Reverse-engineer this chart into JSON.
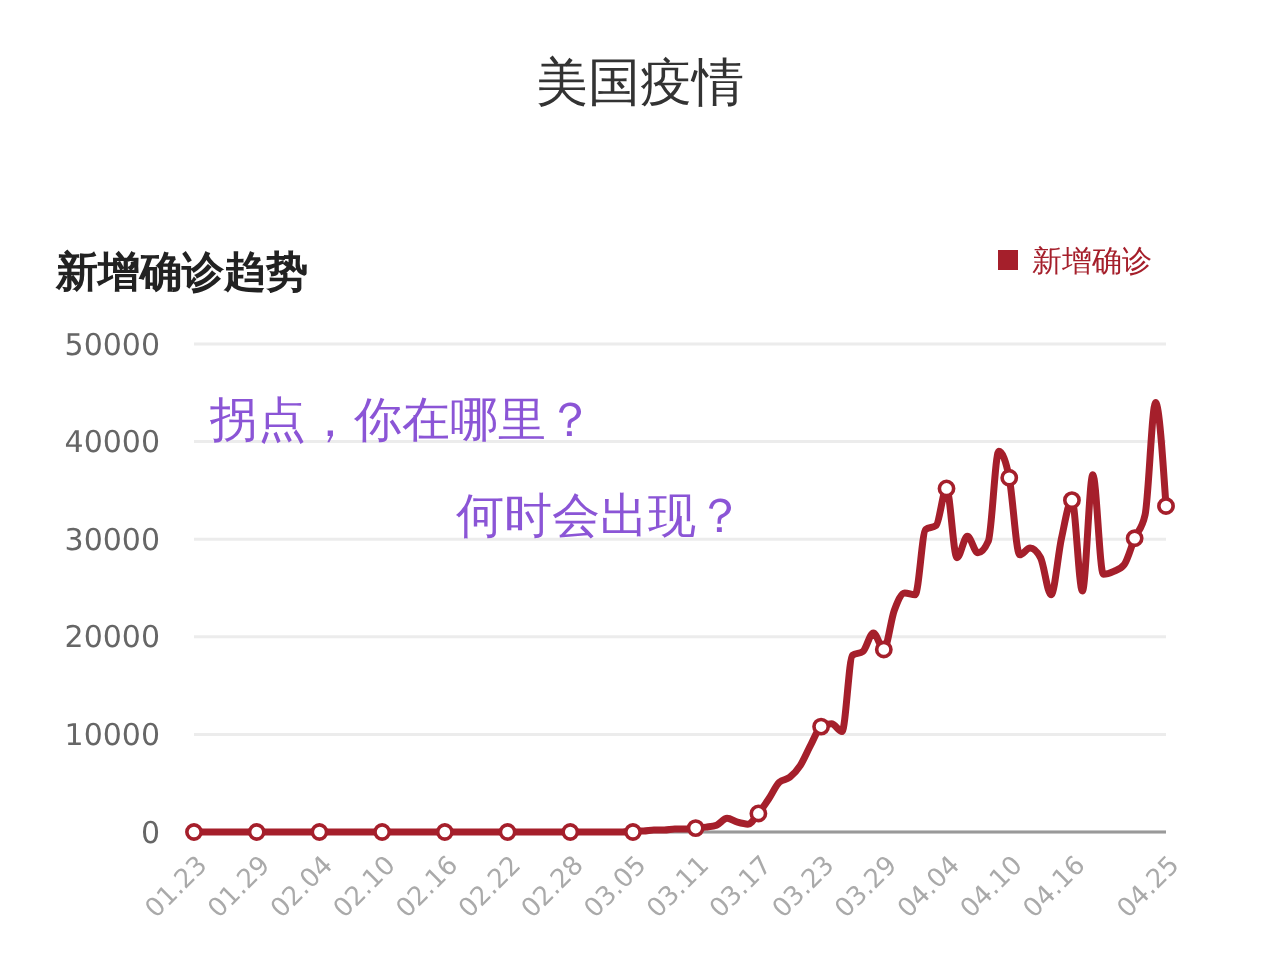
{
  "chart_data": {
    "type": "line",
    "title": "美国疫情",
    "subtitle": "新增确诊趋势",
    "x": [
      "--01-23",
      "--01-24",
      "--01-25",
      "--01-26",
      "--01-27",
      "--01-28",
      "--01-29",
      "--01-30",
      "--01-31",
      "--02-01",
      "--02-02",
      "--02-03",
      "--02-04",
      "--02-05",
      "--02-06",
      "--02-07",
      "--02-08",
      "--02-09",
      "--02-10",
      "--02-11",
      "--02-12",
      "--02-13",
      "--02-14",
      "--02-15",
      "--02-16",
      "--02-17",
      "--02-18",
      "--02-19",
      "--02-20",
      "--02-21",
      "--02-22",
      "--02-23",
      "--02-24",
      "--02-25",
      "--02-26",
      "--02-27",
      "--02-28",
      "--02-29",
      "--03-01",
      "--03-02",
      "--03-03",
      "--03-04",
      "--03-05",
      "--03-06",
      "--03-07",
      "--03-08",
      "--03-09",
      "--03-10",
      "--03-11",
      "--03-12",
      "--03-13",
      "--03-14",
      "--03-15",
      "--03-16",
      "--03-17",
      "--03-18",
      "--03-19",
      "--03-20",
      "--03-21",
      "--03-22",
      "--03-23",
      "--03-24",
      "--03-25",
      "--03-26",
      "--03-27",
      "--03-28",
      "--03-29",
      "--03-30",
      "--03-31",
      "--04-01",
      "--04-02",
      "--04-03",
      "--04-04",
      "--04-05",
      "--04-06",
      "--04-07",
      "--04-08",
      "--04-09",
      "--04-10",
      "--04-11",
      "--04-12",
      "--04-13",
      "--04-14",
      "--04-15",
      "--04-16",
      "--04-17",
      "--04-18",
      "--04-19",
      "--04-20",
      "--04-21",
      "--04-22",
      "--04-23",
      "--04-24",
      "--04-25"
    ],
    "series": [
      {
        "name": "新增确诊",
        "color": "#a51f2b",
        "values": [
          0,
          0,
          0,
          0,
          0,
          0,
          0,
          0,
          0,
          0,
          0,
          0,
          0,
          0,
          0,
          0,
          0,
          0,
          0,
          0,
          0,
          0,
          0,
          0,
          0,
          0,
          0,
          0,
          0,
          0,
          0,
          0,
          0,
          0,
          0,
          0,
          0,
          0,
          0,
          0,
          0,
          0,
          100,
          100,
          200,
          200,
          300,
          300,
          400,
          500,
          700,
          1400,
          1000,
          800,
          1900,
          3400,
          5100,
          5600,
          6800,
          8900,
          10800,
          11100,
          10300,
          18100,
          18500,
          20400,
          18700,
          22700,
          24500,
          24300,
          31000,
          31400,
          35200,
          28100,
          30300,
          28600,
          29800,
          39000,
          36300,
          28400,
          29100,
          28100,
          24300,
          30100,
          34000,
          24700,
          36600,
          26400,
          26700,
          27400,
          30100,
          32500,
          44000,
          33400
        ]
      },
      {
        "type": "scatter",
        "marker": "circle",
        "color": "#ffffff",
        "x": [
          "--01-23",
          "--01-29",
          "--02-04",
          "--02-10",
          "--02-16",
          "--02-22",
          "--02-28",
          "--03-05",
          "--03-11",
          "--03-17",
          "--03-23",
          "--03-29",
          "--04-04",
          "--04-10",
          "--04-16",
          "--04-22",
          "--04-25"
        ],
        "values": [
          0,
          0,
          0,
          0,
          0,
          0,
          0,
          0,
          400,
          1900,
          10800,
          18700,
          35200,
          36300,
          34000,
          30100,
          33400
        ]
      }
    ],
    "xlim": [
      "--01-23",
      "--04-25"
    ],
    "xticks": [
      {
        "value": "--01-23",
        "label": "01.23"
      },
      {
        "value": "--01-29",
        "label": "01.29"
      },
      {
        "value": "--02-04",
        "label": "02.04"
      },
      {
        "value": "--02-10",
        "label": "02.10"
      },
      {
        "value": "--02-16",
        "label": "02.16"
      },
      {
        "value": "--02-22",
        "label": "02.22"
      },
      {
        "value": "--02-28",
        "label": "02.28"
      },
      {
        "value": "--03-05",
        "label": "03.05"
      },
      {
        "value": "--03-11",
        "label": "03.11"
      },
      {
        "value": "--03-17",
        "label": "03.17"
      },
      {
        "value": "--03-23",
        "label": "03.23"
      },
      {
        "value": "--03-29",
        "label": "03.29"
      },
      {
        "value": "--04-04",
        "label": "04.04"
      },
      {
        "value": "--04-10",
        "label": "04.10"
      },
      {
        "value": "--04-16",
        "label": "04.16"
      },
      {
        "value": "--04-25",
        "label": "04.25"
      }
    ],
    "ylim": [
      0,
      50000
    ],
    "yticks": [
      0,
      10000,
      20000,
      30000,
      40000,
      50000
    ],
    "grid": "y",
    "legend": "top right",
    "line_style": "solid",
    "annotations": [
      "拐点，你在哪里？",
      "何时会出现？"
    ]
  }
}
